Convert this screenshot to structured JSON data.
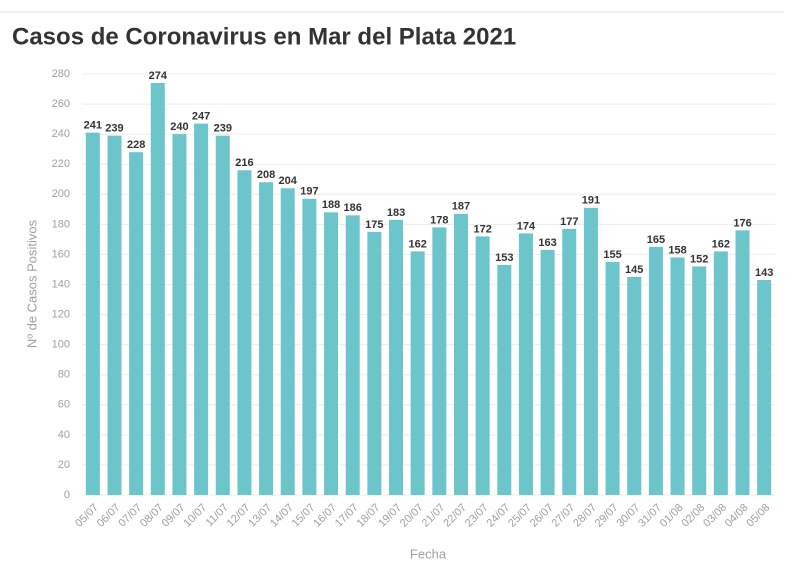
{
  "chart_data": {
    "type": "bar",
    "title": "Casos de Coronavirus en Mar del Plata 2021",
    "x_label": "Fecha",
    "y_label": "Nº de Casos Positivos",
    "categories": [
      "05/07",
      "06/07",
      "07/07",
      "08/07",
      "09/07",
      "10/07",
      "11/07",
      "12/07",
      "13/07",
      "14/07",
      "15/07",
      "16/07",
      "17/07",
      "18/07",
      "19/07",
      "20/07",
      "21/07",
      "22/07",
      "23/07",
      "24/07",
      "25/07",
      "26/07",
      "27/07",
      "28/07",
      "29/07",
      "30/07",
      "31/07",
      "01/08",
      "02/08",
      "03/08",
      "04/08",
      "05/08"
    ],
    "values": [
      241,
      239,
      228,
      274,
      240,
      247,
      239,
      216,
      208,
      204,
      197,
      188,
      186,
      175,
      183,
      162,
      178,
      187,
      172,
      153,
      174,
      163,
      177,
      191,
      155,
      145,
      165,
      158,
      152,
      162,
      176,
      143
    ],
    "color": "#6cc5cb",
    "ylim": [
      0,
      280
    ],
    "yticks": [
      0,
      20,
      40,
      60,
      80,
      100,
      120,
      140,
      160,
      180,
      200,
      220,
      240,
      260,
      280
    ],
    "grid": true
  }
}
